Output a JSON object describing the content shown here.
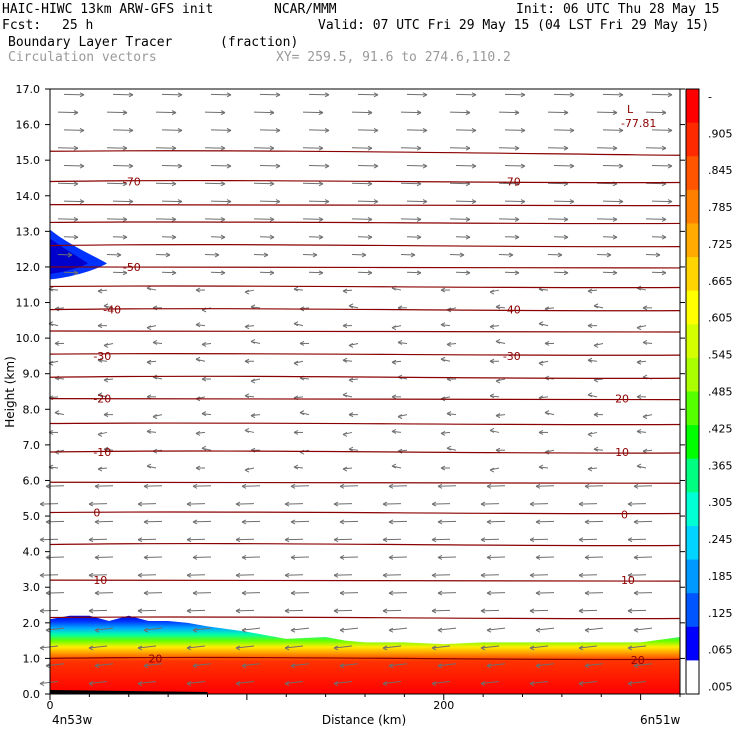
{
  "header": {
    "model": "HAIC-HIWC 13km ARW-GFS init",
    "org": "NCAR/MMM",
    "init": "Init: 06 UTC Thu 28 May 15",
    "fcst_label": "Fcst:",
    "fcst_value": "25 h",
    "valid": "Valid: 07 UTC Fri 29 May 15 (04 LST Fri 29 May 15)",
    "field": "Boundary Layer Tracer",
    "units": "(fraction)",
    "vectors": "Circulation vectors",
    "xy": "XY= 259.5, 91.6 to 274.6,110.2"
  },
  "chart_data": {
    "type": "area",
    "title": "Boundary Layer Tracer (fraction)",
    "xlabel": "Distance (km)",
    "ylabel": "Height (km)",
    "xlim": [
      0,
      320
    ],
    "ylim": [
      0,
      17
    ],
    "x_ticks": [
      {
        "value": 0,
        "label": "0"
      },
      {
        "value": 200,
        "label": "200"
      }
    ],
    "x_end_labels": {
      "left": "4n53w",
      "right": "6n51w"
    },
    "y_ticks": [
      "0.0",
      "1.0",
      "2.0",
      "3.0",
      "4.0",
      "5.0",
      "6.0",
      "7.0",
      "8.0",
      "9.0",
      "10.0",
      "11.0",
      "12.0",
      "13.0",
      "14.0",
      "15.0",
      "16.0",
      "17.0"
    ],
    "grid": false,
    "tracer_top_km": {
      "x": [
        0,
        10,
        20,
        30,
        40,
        50,
        60,
        70,
        80,
        100,
        120,
        140,
        150,
        160,
        180,
        200,
        220,
        260,
        300,
        320
      ],
      "y": [
        2.1,
        2.2,
        2.2,
        2.05,
        2.2,
        2.05,
        2.05,
        2.0,
        1.9,
        1.75,
        1.55,
        1.6,
        1.5,
        1.45,
        1.45,
        1.4,
        1.45,
        1.45,
        1.45,
        1.6
      ]
    },
    "isotherm_labels": [
      {
        "x": 50,
        "y": 1.0,
        "label": "20"
      },
      {
        "x": 295,
        "y": 0.95,
        "label": "20"
      },
      {
        "x": 22,
        "y": 3.2,
        "label": "10"
      },
      {
        "x": 290,
        "y": 3.2,
        "label": "10"
      },
      {
        "x": 22,
        "y": 5.1,
        "label": "0"
      },
      {
        "x": 290,
        "y": 5.05,
        "label": "0"
      },
      {
        "x": 22,
        "y": 6.8,
        "label": "-10"
      },
      {
        "x": 285,
        "y": 6.8,
        "label": "-10"
      },
      {
        "x": 22,
        "y": 8.3,
        "label": "-20"
      },
      {
        "x": 285,
        "y": 8.3,
        "label": "-20"
      },
      {
        "x": 22,
        "y": 9.5,
        "label": "-30"
      },
      {
        "x": 230,
        "y": 9.5,
        "label": "-30"
      },
      {
        "x": 27,
        "y": 10.8,
        "label": "-40"
      },
      {
        "x": 230,
        "y": 10.8,
        "label": "-40"
      },
      {
        "x": 37,
        "y": 12.0,
        "label": "-50"
      },
      {
        "x": 37,
        "y": 14.4,
        "label": "-70"
      },
      {
        "x": 230,
        "y": 14.4,
        "label": "-70"
      }
    ],
    "isotherm_heights_km": [
      1.0,
      2.15,
      3.2,
      4.2,
      5.1,
      5.95,
      6.8,
      7.6,
      8.3,
      8.9,
      9.55,
      10.2,
      10.8,
      11.45,
      12.0,
      12.6,
      13.25,
      13.75,
      14.4,
      15.25
    ],
    "low_marker": {
      "x": 290,
      "y": 16.1,
      "label": "L",
      "value": "-77.81"
    },
    "colorbar": {
      "labels": [
        "-",
        ".905",
        ".845",
        ".785",
        ".725",
        ".665",
        ".605",
        ".545",
        ".485",
        ".425",
        ".365",
        ".305",
        ".245",
        ".185",
        ".125",
        ".065",
        ".005"
      ],
      "colors": [
        "#ff0000",
        "#ff2a00",
        "#ff5500",
        "#ff7f00",
        "#ffaa00",
        "#ffd400",
        "#ffff00",
        "#d4ff00",
        "#aaff00",
        "#55ff00",
        "#00ff00",
        "#00ff80",
        "#00ffd4",
        "#00d4ff",
        "#0099ff",
        "#0055ff",
        "#0000ff",
        "#ffffff"
      ]
    },
    "colors": {
      "isotherm": "#8b0000",
      "vectors": "#6e6e6e",
      "axis": "#000000"
    }
  }
}
